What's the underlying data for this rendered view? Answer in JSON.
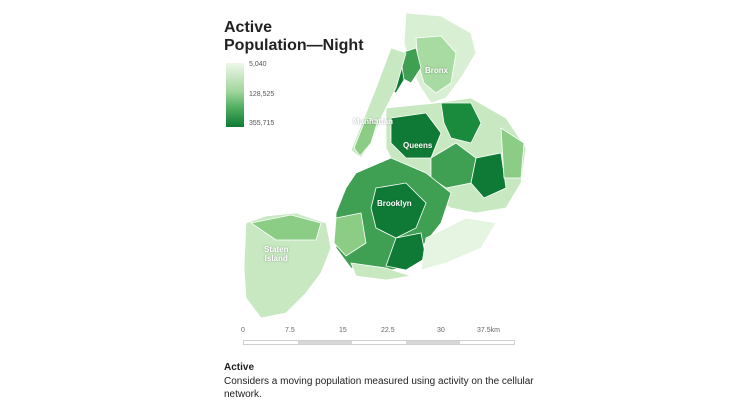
{
  "title": "Active\nPopulation—Night",
  "legend": {
    "max": "5,040",
    "mid": "128,525",
    "min": "355,715"
  },
  "boroughs": {
    "bronx": "Bronx",
    "manhattan": "Manhattan",
    "queens": "Queens",
    "brooklyn": "Brooklyn",
    "staten_island": "Staten\nIsland"
  },
  "scale": {
    "ticks": [
      "0",
      "7.5",
      "15",
      "22.5",
      "30",
      "37.5km"
    ]
  },
  "description": {
    "heading": "Active",
    "body": "Considers a moving population measured using activity on the cellular network."
  },
  "colors": {
    "lightest": "#eef7ea",
    "light": "#c7e8c1",
    "mid": "#8ccd86",
    "dark": "#3f9f52",
    "darkest": "#0f7a35"
  }
}
